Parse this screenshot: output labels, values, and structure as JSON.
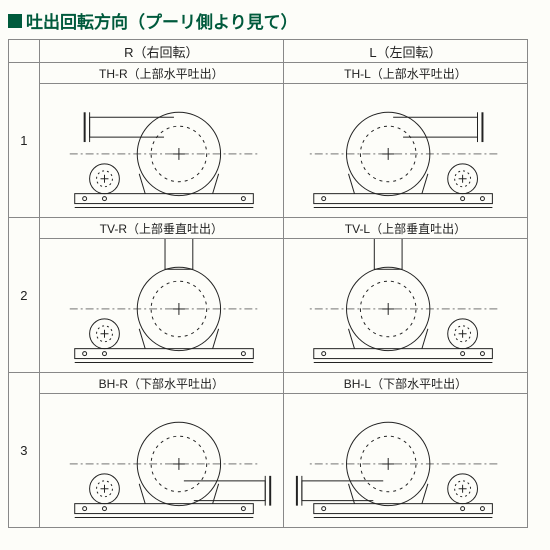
{
  "title": "吐出回転方向（プーリ側より見て）",
  "columns": [
    {
      "code": "R",
      "label": "R（右回転）"
    },
    {
      "code": "L",
      "label": "L（左回転）"
    }
  ],
  "rows": [
    {
      "num": "1",
      "cells": [
        {
          "label": "TH-R（上部水平吐出）",
          "mirror": false,
          "outlet": "top-horizontal"
        },
        {
          "label": "TH-L（上部水平吐出）",
          "mirror": true,
          "outlet": "top-horizontal"
        }
      ]
    },
    {
      "num": "2",
      "cells": [
        {
          "label": "TV-R（上部垂直吐出）",
          "mirror": false,
          "outlet": "top-vertical"
        },
        {
          "label": "TV-L（上部垂直吐出）",
          "mirror": true,
          "outlet": "top-vertical"
        }
      ]
    },
    {
      "num": "3",
      "cells": [
        {
          "label": "BH-R（下部水平吐出）",
          "mirror": false,
          "outlet": "bottom-horizontal"
        },
        {
          "label": "BH-L（下部水平吐出）",
          "mirror": true,
          "outlet": "bottom-horizontal"
        }
      ]
    }
  ],
  "style": {
    "stroke": "#222222",
    "strokeWidth": 1,
    "background": "#fdfdf9",
    "accent": "#005a3c"
  }
}
